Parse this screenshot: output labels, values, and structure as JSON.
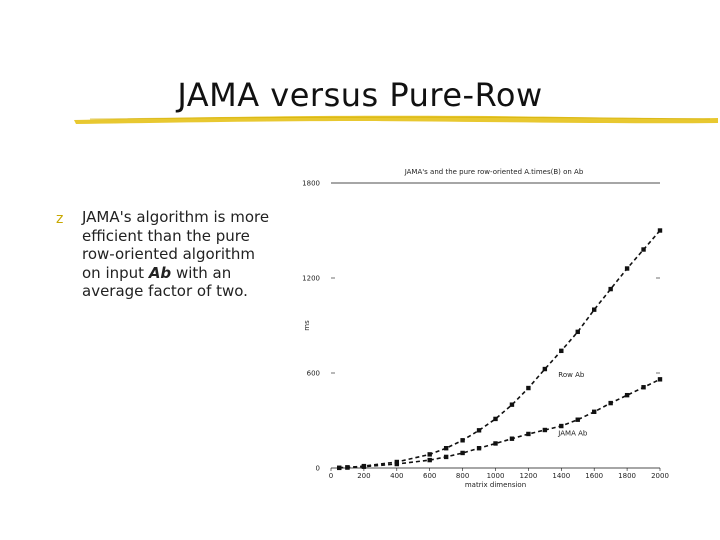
{
  "slide": {
    "title": "JAMA versus Pure-Row",
    "bullet_marker": "z",
    "bullet": {
      "text_before": "JAMA's algorithm is more efficient than the pure row-oriented algorithm on input ",
      "emphasis": "Ab",
      "text_after": " with an average factor of two."
    }
  },
  "colors": {
    "title_underline": "#e6c21a",
    "bullet_marker": "#c8a800",
    "series_line": "#111111"
  },
  "chart_data": {
    "type": "line",
    "title": "JAMA's and the pure row-oriented A.times(B) on Ab",
    "xlabel": "matrix dimension",
    "ylabel": "ms",
    "xlim": [
      0,
      2000
    ],
    "ylim": [
      0,
      1800
    ],
    "xticks": [
      0,
      200,
      400,
      600,
      800,
      1000,
      1200,
      1400,
      1600,
      1800,
      2000
    ],
    "yticks": [
      0,
      600,
      1200,
      1800
    ],
    "x_tick_labels": [
      "0",
      "200",
      "400",
      "600",
      "800",
      "1000",
      "1200",
      "1400",
      "1600",
      "1800",
      "2000"
    ],
    "y_tick_labels": [
      "0",
      "600",
      "1200",
      "1800"
    ],
    "grid": false,
    "series": [
      {
        "name": "Row Ab",
        "label_at": [
          1400,
          590
        ],
        "x": [
          50,
          100,
          200,
          400,
          600,
          700,
          800,
          900,
          1000,
          1100,
          1200,
          1300,
          1400,
          1500,
          1600,
          1700,
          1800,
          1900,
          2000
        ],
        "y": [
          1,
          4,
          12,
          38,
          86,
          125,
          175,
          238,
          310,
          400,
          505,
          625,
          740,
          860,
          1000,
          1130,
          1260,
          1380,
          1500
        ]
      },
      {
        "name": "JAMA Ab",
        "label_at": [
          1400,
          220
        ],
        "x": [
          50,
          100,
          200,
          400,
          600,
          700,
          800,
          900,
          1000,
          1100,
          1200,
          1300,
          1400,
          1500,
          1600,
          1700,
          1800,
          1900,
          2000
        ],
        "y": [
          1,
          3,
          8,
          25,
          50,
          70,
          95,
          125,
          155,
          185,
          215,
          240,
          265,
          305,
          355,
          410,
          460,
          510,
          560
        ]
      }
    ]
  }
}
